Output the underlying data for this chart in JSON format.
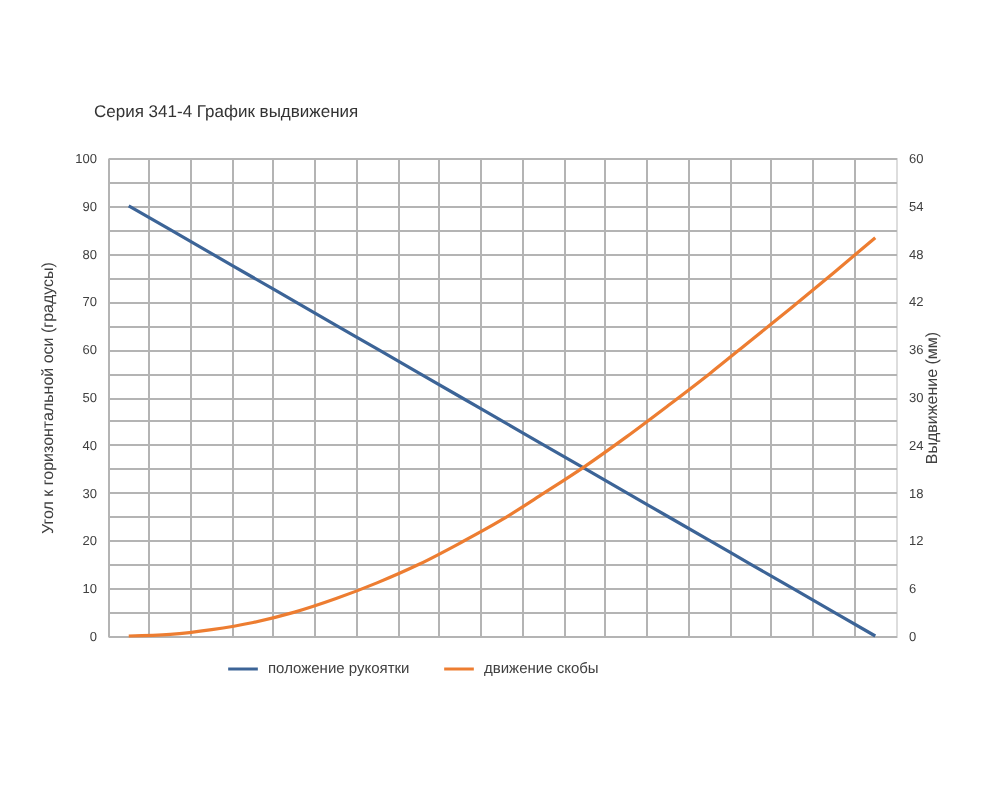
{
  "chart_data": {
    "type": "line",
    "title": "Серия 341-4 График выдвижения",
    "ylabel": "Угол к горизонтальной оси (градусы)",
    "y2label": "Выдвижение (мм)",
    "categories": [
      null,
      null,
      null,
      null,
      null,
      null,
      null,
      null,
      null,
      null,
      null,
      null,
      null,
      null,
      null,
      null,
      null,
      null,
      null
    ],
    "series": [
      {
        "name": "положение рукоятки",
        "color": "#3c6497",
        "values": [
          90,
          85,
          80,
          75,
          70,
          65,
          60,
          55,
          50,
          45,
          40,
          35,
          30,
          25,
          20,
          15,
          10,
          5,
          0
        ]
      },
      {
        "name": "движение скобы",
        "color": "#ed7d31",
        "axis": "y2",
        "values": [
          0,
          0.2,
          0.8,
          1.7,
          3.0,
          4.7,
          6.7,
          9.0,
          11.7,
          14.6,
          17.9,
          21.3,
          25.0,
          28.9,
          32.9,
          37.1,
          41.3,
          45.6,
          50
        ]
      }
    ],
    "ylim": [
      0,
      100
    ],
    "yticks": [
      0,
      {
        "value": 5,
        "label": null
      },
      10,
      {
        "value": 15,
        "label": null
      },
      20,
      {
        "value": 25,
        "label": null
      },
      30,
      {
        "value": 35,
        "label": null
      },
      40,
      {
        "value": 45,
        "label": null
      },
      50,
      {
        "value": 55,
        "label": null
      },
      60,
      {
        "value": 65,
        "label": null
      },
      70,
      {
        "value": 75,
        "label": null
      },
      80,
      {
        "value": 85,
        "label": null
      },
      90,
      {
        "value": 95,
        "label": null
      },
      100
    ],
    "y2lim": [
      0,
      60
    ],
    "y2ticks": [
      0,
      6,
      12,
      18,
      24,
      30,
      36,
      42,
      48,
      54,
      60
    ],
    "grid": true,
    "legend": "bottom"
  }
}
